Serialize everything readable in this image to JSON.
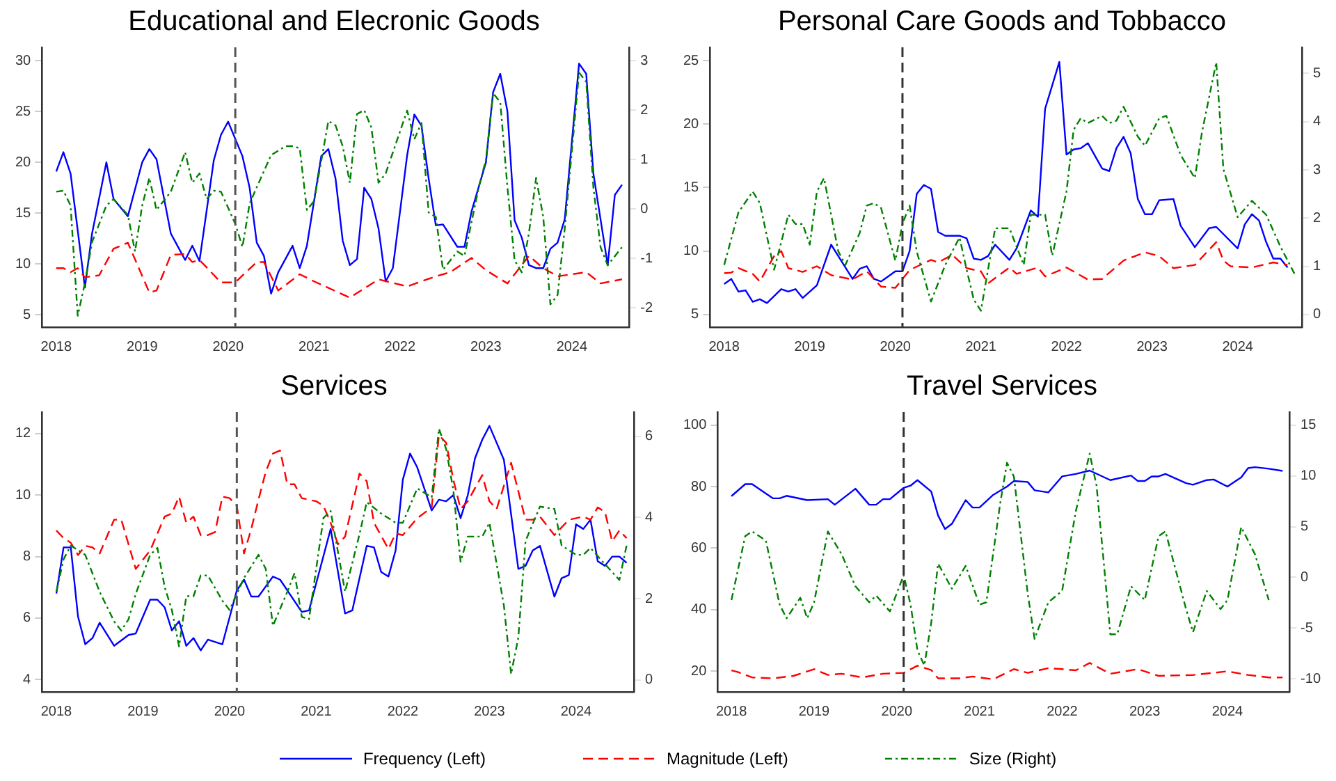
{
  "chart_data": [
    {
      "type": "line",
      "title": "Educational and Elecronic Goods",
      "xlim": [
        "2017-11",
        "2024-09"
      ],
      "xticks": [
        "2018",
        "2019",
        "2020",
        "2021",
        "2022",
        "2023",
        "2024"
      ],
      "ylim": [
        3.8,
        31.3
      ],
      "yticks": [
        5,
        10,
        15,
        20,
        25,
        30
      ],
      "y2lim": [
        -2.39,
        3.27
      ],
      "y2ticks": [
        -2,
        -1,
        0,
        1,
        2,
        3
      ],
      "ref_lines": [
        {
          "axis": "x",
          "value": "2020-02",
          "color": "#555555",
          "line_style": "dashed"
        }
      ],
      "series": [
        {
          "color": "#0000ff",
          "line_style": "solid",
          "x": [
            "2018-01",
            "2018-02",
            "2018-03",
            "2018-05",
            "2018-06",
            "2018-08",
            "2018-09",
            "2018-11",
            "2019-01",
            "2019-02",
            "2019-03",
            "2019-05",
            "2019-07",
            "2019-08",
            "2019-09",
            "2019-11",
            "2019-12",
            "2020-01",
            "2020-03",
            "2020-04",
            "2020-05",
            "2020-06",
            "2020-07",
            "2020-08",
            "2020-10",
            "2020-11",
            "2020-12",
            "2021-02",
            "2021-03",
            "2021-04",
            "2021-05",
            "2021-06",
            "2021-07",
            "2021-08",
            "2021-09",
            "2021-10",
            "2021-11",
            "2021-12",
            "2022-02",
            "2022-03",
            "2022-04",
            "2022-05",
            "2022-06",
            "2022-07",
            "2022-09",
            "2022-10",
            "2022-11",
            "2023-01",
            "2023-02",
            "2023-03",
            "2023-04",
            "2023-05",
            "2023-06",
            "2023-07",
            "2023-08",
            "2023-09",
            "2023-10",
            "2023-11",
            "2023-12",
            "2024-02",
            "2024-03",
            "2024-04",
            "2024-06",
            "2024-07",
            "2024-08"
          ],
          "values": [
            19.1,
            21.0,
            18.9,
            7.7,
            13.0,
            20.0,
            16.4,
            14.7,
            20.0,
            21.3,
            20.3,
            13.0,
            10.4,
            11.8,
            10.3,
            20.2,
            22.7,
            24.0,
            20.6,
            17.5,
            12.1,
            10.8,
            7.1,
            9.2,
            11.8,
            9.6,
            11.8,
            20.6,
            21.3,
            18.4,
            12.3,
            9.9,
            10.5,
            17.5,
            16.4,
            13.5,
            8.3,
            9.6,
            20.7,
            24.7,
            23.6,
            18.4,
            13.8,
            13.9,
            11.7,
            11.7,
            15.2,
            20.0,
            26.9,
            28.7,
            25.0,
            14.3,
            12.6,
            9.9,
            9.6,
            9.6,
            11.5,
            12.1,
            14.4,
            29.7,
            28.7,
            18.9,
            9.9,
            16.8,
            17.8
          ]
        },
        {
          "color": "#ff0000",
          "line_style": "dashed",
          "x": [
            "2018-01",
            "2018-02",
            "2018-03",
            "2018-04",
            "2018-05",
            "2018-07",
            "2018-09",
            "2018-11",
            "2019-02",
            "2019-03",
            "2019-05",
            "2019-07",
            "2019-08",
            "2019-09",
            "2019-12",
            "2020-02",
            "2020-05",
            "2020-06",
            "2020-08",
            "2020-11",
            "2021-01",
            "2021-06",
            "2021-10",
            "2022-02",
            "2022-06",
            "2022-08",
            "2022-11",
            "2023-01",
            "2023-04",
            "2023-05",
            "2023-07",
            "2023-09",
            "2023-11",
            "2024-03",
            "2024-05",
            "2024-08"
          ],
          "values": [
            9.6,
            9.6,
            9.2,
            9.6,
            8.7,
            8.9,
            11.5,
            12.1,
            7.2,
            7.4,
            10.9,
            11.0,
            10.2,
            10.4,
            8.2,
            8.2,
            10.2,
            10.2,
            7.4,
            9.0,
            8.3,
            6.7,
            8.5,
            7.8,
            8.8,
            9.2,
            10.6,
            9.4,
            8.1,
            9.0,
            10.8,
            9.6,
            8.8,
            9.2,
            8.1,
            8.5
          ]
        },
        {
          "color": "#008000",
          "line_style": "dashdot",
          "axis": "y2",
          "x": [
            "2018-01",
            "2018-02",
            "2018-03",
            "2018-04",
            "2018-05",
            "2018-06",
            "2018-08",
            "2018-09",
            "2018-11",
            "2018-12",
            "2019-01",
            "2019-02",
            "2019-03",
            "2019-05",
            "2019-07",
            "2019-08",
            "2019-09",
            "2019-10",
            "2019-11",
            "2019-12",
            "2020-02",
            "2020-03",
            "2020-04",
            "2020-05",
            "2020-07",
            "2020-09",
            "2020-10",
            "2020-11",
            "2020-12",
            "2021-01",
            "2021-03",
            "2021-04",
            "2021-05",
            "2021-06",
            "2021-07",
            "2021-08",
            "2021-09",
            "2021-10",
            "2021-11",
            "2022-02",
            "2022-03",
            "2022-04",
            "2022-05",
            "2022-06",
            "2022-07",
            "2022-09",
            "2022-10",
            "2022-12",
            "2023-01",
            "2023-02",
            "2023-03",
            "2023-04",
            "2023-05",
            "2023-06",
            "2023-07",
            "2023-08",
            "2023-09",
            "2023-10",
            "2023-11",
            "2023-12",
            "2024-02",
            "2024-03",
            "2024-04",
            "2024-05",
            "2024-06",
            "2024-08"
          ],
          "values": [
            0.35,
            0.37,
            0.07,
            -2.16,
            -1.5,
            -0.67,
            0.07,
            0.2,
            -0.12,
            -0.86,
            0.07,
            0.63,
            -0.02,
            0.35,
            1.15,
            0.53,
            0.72,
            0.2,
            0.37,
            0.35,
            -0.3,
            -0.77,
            0.11,
            0.44,
            1.09,
            1.27,
            1.27,
            1.23,
            -0.02,
            0.16,
            1.78,
            1.69,
            1.27,
            0.53,
            1.92,
            2.0,
            1.65,
            0.53,
            0.72,
            1.99,
            1.41,
            1.74,
            -0.07,
            -0.16,
            -1.23,
            -0.86,
            -0.95,
            0.44,
            1.0,
            2.34,
            2.16,
            0.44,
            -1.04,
            -1.28,
            -0.49,
            0.63,
            -0.16,
            -1.93,
            -1.74,
            -0.4,
            2.76,
            2.57,
            0.44,
            -0.77,
            -1.14,
            -0.77
          ]
        }
      ]
    },
    {
      "type": "line",
      "title": "Personal Care Goods and Tobbacco",
      "xlim": [
        "2017-11",
        "2024-10"
      ],
      "xticks": [
        "2018",
        "2019",
        "2020",
        "2021",
        "2022",
        "2023",
        "2024"
      ],
      "ylim": [
        4.0,
        26.05
      ],
      "yticks": [
        5,
        10,
        15,
        20,
        25
      ],
      "y2lim": [
        -0.26,
        5.54
      ],
      "y2ticks": [
        0,
        1,
        2,
        3,
        4,
        5
      ],
      "ref_lines": [
        {
          "axis": "x",
          "value": "2020-02",
          "color": "#333333",
          "line_style": "dashed"
        }
      ],
      "series": [
        {
          "color": "#0000ff",
          "line_style": "solid",
          "x": [
            "2018-01",
            "2018-02",
            "2018-03",
            "2018-04",
            "2018-05",
            "2018-06",
            "2018-07",
            "2018-09",
            "2018-10",
            "2018-11",
            "2018-12",
            "2019-02",
            "2019-04",
            "2019-05",
            "2019-07",
            "2019-08",
            "2019-09",
            "2019-10",
            "2019-11",
            "2020-01",
            "2020-02",
            "2020-03",
            "2020-04",
            "2020-05",
            "2020-06",
            "2020-07",
            "2020-08",
            "2020-10",
            "2020-11",
            "2020-12",
            "2021-01",
            "2021-02",
            "2021-03",
            "2021-05",
            "2021-06",
            "2021-08",
            "2021-09",
            "2021-10",
            "2021-12",
            "2022-01",
            "2022-02",
            "2022-03",
            "2022-04",
            "2022-06",
            "2022-07",
            "2022-08",
            "2022-09",
            "2022-10",
            "2022-11",
            "2022-12",
            "2023-01",
            "2023-02",
            "2023-04",
            "2023-05",
            "2023-07",
            "2023-09",
            "2023-10",
            "2024-01",
            "2024-02",
            "2024-03",
            "2024-04",
            "2024-05",
            "2024-06",
            "2024-07",
            "2024-08"
          ],
          "values": [
            7.4,
            7.8,
            6.8,
            6.9,
            6.0,
            6.2,
            5.9,
            7.0,
            6.8,
            7.0,
            6.3,
            7.3,
            10.5,
            9.6,
            7.8,
            8.6,
            8.8,
            7.8,
            7.6,
            8.4,
            8.4,
            10.0,
            14.5,
            15.2,
            14.9,
            11.5,
            11.2,
            11.2,
            11.0,
            9.4,
            9.3,
            9.6,
            10.5,
            9.3,
            10.2,
            13.2,
            12.7,
            21.2,
            24.9,
            17.6,
            18.0,
            18.1,
            18.5,
            16.5,
            16.3,
            18.1,
            19.0,
            17.7,
            14.1,
            12.9,
            12.9,
            14.0,
            14.1,
            12.0,
            10.3,
            11.8,
            11.9,
            10.2,
            12.1,
            12.9,
            12.4,
            10.7,
            9.4,
            9.4,
            8.7
          ]
        },
        {
          "color": "#ff0000",
          "line_style": "dashed",
          "x": [
            "2018-01",
            "2018-02",
            "2018-03",
            "2018-05",
            "2018-06",
            "2018-08",
            "2018-09",
            "2018-10",
            "2018-12",
            "2019-02",
            "2019-04",
            "2019-07",
            "2019-09",
            "2019-11",
            "2020-01",
            "2020-03",
            "2020-06",
            "2020-07",
            "2020-09",
            "2020-11",
            "2021-01",
            "2021-02",
            "2021-05",
            "2021-06",
            "2021-09",
            "2021-10",
            "2022-01",
            "2022-04",
            "2022-06",
            "2022-09",
            "2022-12",
            "2023-02",
            "2023-04",
            "2023-07",
            "2023-10",
            "2023-11",
            "2023-12",
            "2024-03",
            "2024-06",
            "2024-08"
          ],
          "values": [
            8.25,
            8.3,
            8.65,
            8.2,
            7.6,
            9.6,
            10.0,
            8.65,
            8.35,
            8.8,
            8.1,
            7.75,
            8.4,
            7.2,
            7.1,
            8.5,
            9.3,
            9.1,
            9.7,
            8.65,
            8.4,
            7.45,
            8.7,
            8.2,
            8.7,
            8.0,
            8.7,
            7.75,
            7.8,
            9.25,
            9.9,
            9.6,
            8.65,
            8.9,
            10.7,
            9.25,
            8.8,
            8.7,
            9.1,
            8.9
          ]
        },
        {
          "color": "#008000",
          "line_style": "dashdot",
          "axis": "y2",
          "x": [
            "2018-01",
            "2018-03",
            "2018-05",
            "2018-06",
            "2018-08",
            "2018-10",
            "2018-11",
            "2018-12",
            "2019-01",
            "2019-02",
            "2019-03",
            "2019-05",
            "2019-06",
            "2019-08",
            "2019-09",
            "2019-10",
            "2019-11",
            "2020-01",
            "2020-02",
            "2020-03",
            "2020-04",
            "2020-06",
            "2020-08",
            "2020-10",
            "2020-11",
            "2020-12",
            "2021-01",
            "2021-03",
            "2021-05",
            "2021-07",
            "2021-08",
            "2021-10",
            "2021-11",
            "2022-01",
            "2022-02",
            "2022-03",
            "2022-04",
            "2022-06",
            "2022-07",
            "2022-08",
            "2022-09",
            "2022-11",
            "2022-12",
            "2023-02",
            "2023-03",
            "2023-05",
            "2023-07",
            "2023-08",
            "2023-10",
            "2023-11",
            "2024-01",
            "2024-03",
            "2024-05",
            "2024-07",
            "2024-09"
          ],
          "values": [
            1.03,
            2.12,
            2.55,
            2.31,
            0.93,
            2.07,
            1.88,
            1.88,
            1.45,
            2.55,
            2.83,
            1.31,
            1.03,
            1.69,
            2.26,
            2.31,
            2.21,
            1.12,
            1.88,
            2.26,
            1.31,
            0.27,
            1.03,
            1.6,
            0.93,
            0.31,
            0.08,
            1.79,
            1.79,
            1.03,
            2.07,
            2.07,
            1.22,
            2.55,
            3.83,
            4.07,
            3.97,
            4.12,
            3.97,
            4.02,
            4.31,
            3.69,
            3.5,
            4.07,
            4.12,
            3.31,
            2.83,
            3.78,
            5.23,
            3.02,
            2.02,
            2.36,
            2.07,
            1.41,
            0.84
          ]
        }
      ]
    },
    {
      "type": "line",
      "title": "Services",
      "xlim": [
        "2017-11",
        "2024-09"
      ],
      "xticks": [
        "2018",
        "2019",
        "2020",
        "2021",
        "2022",
        "2023",
        "2024"
      ],
      "ylim": [
        3.6,
        12.7
      ],
      "yticks": [
        4,
        6,
        8,
        10,
        12
      ],
      "y2lim": [
        -0.3,
        6.6
      ],
      "y2ticks": [
        0,
        2,
        4,
        6
      ],
      "ref_lines": [
        {
          "axis": "x",
          "value": "2020-02",
          "color": "#555555",
          "line_style": "dashed"
        }
      ],
      "series": [
        {
          "color": "#0000ff",
          "line_style": "solid",
          "x": [
            "2018-01",
            "2018-02",
            "2018-03",
            "2018-04",
            "2018-05",
            "2018-06",
            "2018-07",
            "2018-09",
            "2018-11",
            "2018-12",
            "2019-02",
            "2019-03",
            "2019-04",
            "2019-05",
            "2019-06",
            "2019-07",
            "2019-08",
            "2019-09",
            "2019-10",
            "2019-12",
            "2020-02",
            "2020-03",
            "2020-04",
            "2020-05",
            "2020-07",
            "2020-08",
            "2020-11",
            "2020-12",
            "2021-03",
            "2021-05",
            "2021-06",
            "2021-08",
            "2021-09",
            "2021-10",
            "2021-11",
            "2021-12",
            "2022-01",
            "2022-02",
            "2022-03",
            "2022-05",
            "2022-06",
            "2022-07",
            "2022-08",
            "2022-09",
            "2022-10",
            "2022-11",
            "2022-12",
            "2023-01",
            "2023-03",
            "2023-05",
            "2023-06",
            "2023-07",
            "2023-08",
            "2023-10",
            "2023-11",
            "2023-12",
            "2024-01",
            "2024-02",
            "2024-03",
            "2024-04",
            "2024-05",
            "2024-06",
            "2024-07",
            "2024-08"
          ],
          "values": [
            6.8,
            8.3,
            8.3,
            6.05,
            5.15,
            5.35,
            5.85,
            5.1,
            5.45,
            5.5,
            6.6,
            6.6,
            6.35,
            5.6,
            5.9,
            5.1,
            5.35,
            4.95,
            5.3,
            5.15,
            6.9,
            7.25,
            6.7,
            6.7,
            7.35,
            7.25,
            6.2,
            6.25,
            8.9,
            6.15,
            6.25,
            8.35,
            8.3,
            7.5,
            7.35,
            8.2,
            10.5,
            11.35,
            10.9,
            9.5,
            9.85,
            9.8,
            10.0,
            9.25,
            10.0,
            11.2,
            11.8,
            12.25,
            11.15,
            7.6,
            7.7,
            8.2,
            8.35,
            6.7,
            7.3,
            7.4,
            9.05,
            8.9,
            9.2,
            7.85,
            7.7,
            8.0,
            8.0,
            7.8
          ]
        },
        {
          "color": "#ff0000",
          "line_style": "dashed",
          "x": [
            "2018-01",
            "2018-02",
            "2018-03",
            "2018-04",
            "2018-05",
            "2018-06",
            "2018-07",
            "2018-09",
            "2018-10",
            "2018-12",
            "2019-02",
            "2019-04",
            "2019-05",
            "2019-06",
            "2019-07",
            "2019-08",
            "2019-09",
            "2019-10",
            "2019-11",
            "2019-12",
            "2020-01",
            "2020-02",
            "2020-03",
            "2020-04",
            "2020-05",
            "2020-06",
            "2020-07",
            "2020-08",
            "2020-09",
            "2020-10",
            "2020-11",
            "2020-12",
            "2021-01",
            "2021-02",
            "2021-03",
            "2021-04",
            "2021-05",
            "2021-07",
            "2021-08",
            "2021-09",
            "2021-11",
            "2021-12",
            "2022-01",
            "2022-03",
            "2022-05",
            "2022-06",
            "2022-07",
            "2022-08",
            "2022-09",
            "2022-10",
            "2022-12",
            "2023-01",
            "2023-02",
            "2023-04",
            "2023-06",
            "2023-07",
            "2023-08",
            "2023-10",
            "2023-12",
            "2024-02",
            "2024-03",
            "2024-04",
            "2024-05",
            "2024-06",
            "2024-07",
            "2024-08"
          ],
          "values": [
            8.85,
            8.6,
            8.45,
            8.05,
            8.35,
            8.3,
            8.1,
            9.2,
            9.2,
            7.6,
            8.2,
            9.3,
            9.4,
            9.95,
            9.1,
            9.3,
            8.7,
            8.7,
            8.8,
            9.95,
            9.9,
            9.65,
            8.1,
            8.9,
            9.85,
            10.75,
            11.35,
            11.45,
            10.35,
            10.35,
            9.9,
            9.85,
            9.8,
            9.65,
            9.1,
            8.4,
            8.65,
            10.7,
            10.45,
            9.1,
            8.25,
            8.75,
            8.7,
            9.25,
            9.6,
            11.95,
            11.7,
            10.5,
            9.55,
            9.8,
            10.65,
            9.8,
            9.55,
            11.05,
            9.2,
            9.2,
            9.3,
            8.7,
            9.2,
            9.3,
            9.2,
            9.6,
            9.45,
            8.5,
            8.85,
            8.6
          ]
        },
        {
          "color": "#008000",
          "line_style": "dashdot",
          "axis": "y2",
          "x": [
            "2018-01",
            "2018-02",
            "2018-03",
            "2018-05",
            "2018-07",
            "2018-09",
            "2018-10",
            "2018-11",
            "2018-12",
            "2019-02",
            "2019-03",
            "2019-04",
            "2019-05",
            "2019-06",
            "2019-07",
            "2019-08",
            "2019-09",
            "2019-10",
            "2019-12",
            "2020-01",
            "2020-03",
            "2020-05",
            "2020-06",
            "2020-07",
            "2020-09",
            "2020-10",
            "2020-11",
            "2020-12",
            "2021-02",
            "2021-03",
            "2021-05",
            "2021-07",
            "2021-08",
            "2021-10",
            "2021-12",
            "2022-01",
            "2022-03",
            "2022-05",
            "2022-06",
            "2022-07",
            "2022-08",
            "2022-09",
            "2022-10",
            "2022-12",
            "2023-01",
            "2023-03",
            "2023-04",
            "2023-05",
            "2023-06",
            "2023-08",
            "2023-10",
            "2023-11",
            "2024-01",
            "2024-02",
            "2024-03",
            "2024-05",
            "2024-07",
            "2024-08"
          ],
          "values": [
            2.17,
            2.97,
            3.31,
            3.08,
            2.17,
            1.44,
            1.21,
            1.49,
            2.12,
            3.08,
            3.25,
            2.29,
            1.72,
            0.82,
            2.06,
            2.06,
            2.57,
            2.57,
            1.95,
            1.72,
            2.51,
            3.08,
            2.74,
            1.33,
            2.17,
            2.63,
            1.55,
            1.49,
            3.99,
            4.16,
            2.17,
            3.59,
            4.38,
            4.1,
            3.87,
            3.87,
            4.72,
            4.5,
            6.19,
            5.69,
            4.67,
            2.91,
            3.53,
            3.53,
            3.87,
            1.83,
            0.14,
            1.04,
            3.42,
            4.27,
            4.21,
            3.31,
            3.08,
            3.08,
            3.25,
            2.85,
            2.46,
            3.31
          ]
        }
      ]
    },
    {
      "type": "line",
      "title": "Travel Services",
      "xlim": [
        "2017-11",
        "2024-10"
      ],
      "xticks": [
        "2018",
        "2019",
        "2020",
        "2021",
        "2022",
        "2023",
        "2024"
      ],
      "ylim": [
        13.3,
        104.2
      ],
      "yticks": [
        20,
        40,
        60,
        80,
        100
      ],
      "y2lim": [
        -11.3,
        16.3
      ],
      "y2ticks": [
        -10,
        -5,
        0,
        5,
        10,
        15
      ],
      "legend": "bottom",
      "ref_lines": [
        {
          "axis": "x",
          "value": "2020-02",
          "color": "#333333",
          "line_style": "dashed"
        }
      ],
      "series": [
        {
          "name": "Frequency (Left)",
          "color": "#0000ff",
          "line_style": "solid",
          "x": [
            "2018-01",
            "2018-03",
            "2018-04",
            "2018-07",
            "2018-08",
            "2018-09",
            "2018-12",
            "2019-03",
            "2019-04",
            "2019-07",
            "2019-09",
            "2019-10",
            "2019-11",
            "2019-12",
            "2020-02",
            "2020-03",
            "2020-04",
            "2020-06",
            "2020-07",
            "2020-08",
            "2020-09",
            "2020-11",
            "2020-12",
            "2021-01",
            "2021-03",
            "2021-05",
            "2021-06",
            "2021-08",
            "2021-09",
            "2021-11",
            "2022-01",
            "2022-03",
            "2022-05",
            "2022-08",
            "2022-11",
            "2022-12",
            "2023-01",
            "2023-02",
            "2023-03",
            "2023-04",
            "2023-07",
            "2023-08",
            "2023-10",
            "2023-11",
            "2024-01",
            "2024-03",
            "2024-04",
            "2024-05",
            "2024-07",
            "2024-09"
          ],
          "values": [
            76.9,
            80.8,
            80.8,
            76.2,
            76.2,
            77.0,
            75.6,
            75.9,
            74.1,
            79.3,
            74.1,
            74.1,
            75.9,
            75.9,
            79.6,
            80.3,
            82.1,
            78.4,
            70.6,
            66.2,
            67.9,
            75.6,
            73.2,
            73.2,
            77.3,
            80.0,
            81.8,
            81.5,
            78.8,
            78.1,
            83.3,
            84.1,
            85.2,
            82.1,
            83.6,
            81.8,
            81.8,
            83.3,
            83.3,
            84.1,
            81.1,
            80.6,
            82.1,
            82.3,
            80.0,
            83.0,
            86.0,
            86.3,
            85.8,
            85.1
          ]
        },
        {
          "name": "Magnitude (Left)",
          "color": "#ff0000",
          "line_style": "dashed",
          "x": [
            "2018-01",
            "2018-02",
            "2018-04",
            "2018-07",
            "2018-10",
            "2019-01",
            "2019-03",
            "2019-05",
            "2019-08",
            "2019-11",
            "2020-02",
            "2020-04",
            "2020-06",
            "2020-07",
            "2020-10",
            "2020-12",
            "2021-03",
            "2021-06",
            "2021-08",
            "2021-11",
            "2022-01",
            "2022-03",
            "2022-05",
            "2022-08",
            "2022-12",
            "2023-03",
            "2023-08",
            "2023-11",
            "2024-01",
            "2024-04",
            "2024-07",
            "2024-09"
          ],
          "values": [
            20.3,
            19.7,
            18.0,
            17.7,
            18.5,
            20.7,
            18.8,
            19.2,
            18.0,
            19.2,
            19.5,
            21.8,
            20.4,
            17.7,
            17.7,
            18.3,
            17.4,
            20.7,
            19.5,
            21.0,
            20.7,
            20.3,
            22.7,
            19.2,
            20.7,
            18.5,
            18.8,
            19.5,
            20.0,
            18.8,
            18.0,
            18.0
          ]
        },
        {
          "name": "Size (Right)",
          "color": "#008000",
          "line_style": "dashdot",
          "axis": "y2",
          "x": [
            "2018-01",
            "2018-03",
            "2018-04",
            "2018-06",
            "2018-08",
            "2018-09",
            "2018-11",
            "2018-12",
            "2019-01",
            "2019-03",
            "2019-05",
            "2019-07",
            "2019-09",
            "2019-10",
            "2019-12",
            "2020-02",
            "2020-03",
            "2020-04",
            "2020-05",
            "2020-06",
            "2020-07",
            "2020-09",
            "2020-11",
            "2021-01",
            "2021-02",
            "2021-04",
            "2021-05",
            "2021-06",
            "2021-08",
            "2021-09",
            "2021-11",
            "2022-01",
            "2022-03",
            "2022-05",
            "2022-06",
            "2022-07",
            "2022-08",
            "2022-09",
            "2022-11",
            "2023-01",
            "2023-03",
            "2023-04",
            "2023-07",
            "2023-08",
            "2023-10",
            "2023-12",
            "2024-01",
            "2024-03",
            "2024-05",
            "2024-07"
          ],
          "values": [
            -2.24,
            4.06,
            4.53,
            3.63,
            -2.69,
            -4.04,
            -2.01,
            -4.04,
            -2.46,
            4.53,
            2.27,
            -0.88,
            -2.46,
            -1.79,
            -3.36,
            0.22,
            -2.69,
            -7.2,
            -8.69,
            -4.49,
            1.36,
            -1.12,
            1.13,
            -2.69,
            -2.46,
            7.24,
            11.3,
            9.95,
            -1.56,
            -6.07,
            -2.46,
            -1.34,
            6.56,
            12.2,
            9.05,
            1.8,
            -5.62,
            -5.62,
            -0.88,
            -2.24,
            4.06,
            4.53,
            -3.14,
            -5.4,
            -1.34,
            -3.14,
            -2.24,
            4.96,
            2.27,
            -2.24
          ]
        }
      ]
    }
  ]
}
